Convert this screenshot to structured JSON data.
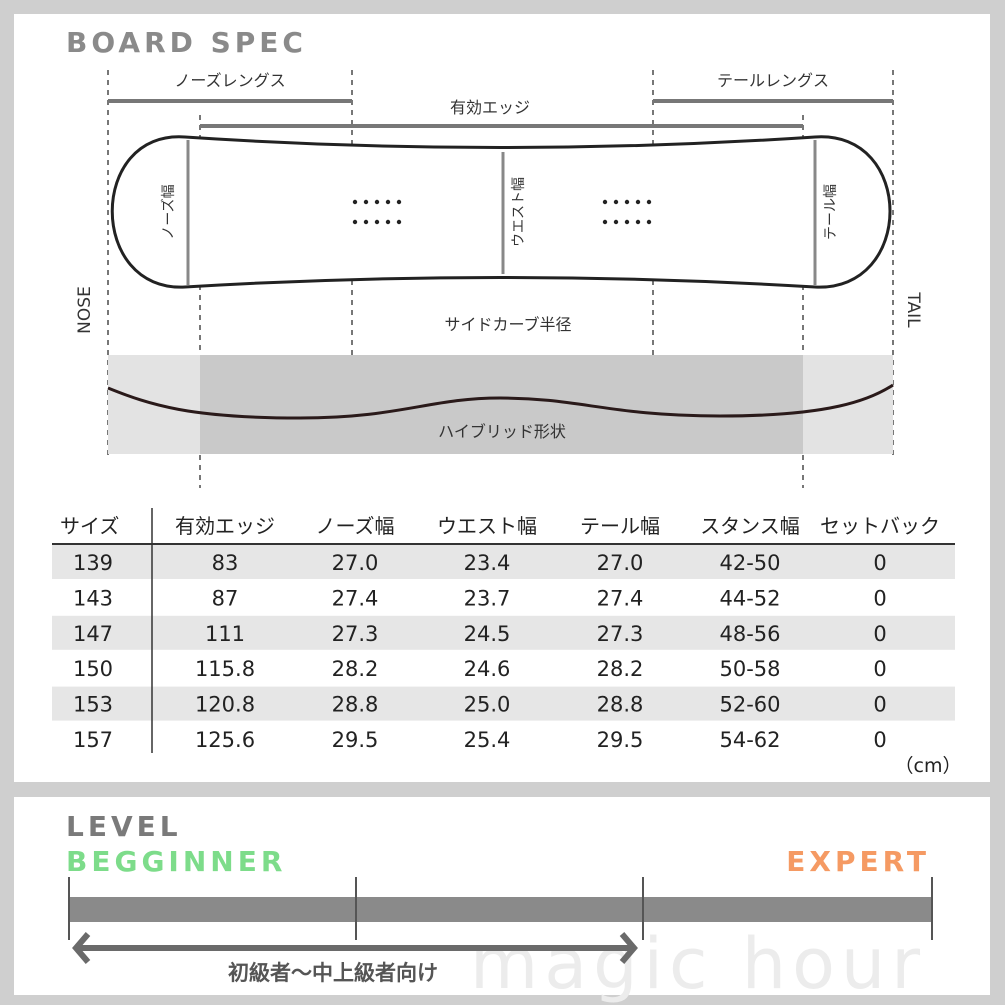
{
  "spec": {
    "title": "BOARD SPEC",
    "labels": {
      "nose_length": "ノーズレングス",
      "effective_edge": "有効エッジ",
      "tail_length": "テールレングス",
      "nose_width": "ノーズ幅",
      "waist_width": "ウエスト幅",
      "tail_width": "テール幅",
      "nose": "NOSE",
      "tail": "TAIL",
      "sidecut_radius": "サイドカーブ半径",
      "hybrid_shape": "ハイブリッド形状"
    },
    "table": {
      "headers": [
        "サイズ",
        "有効エッジ",
        "ノーズ幅",
        "ウエスト幅",
        "テール幅",
        "スタンス幅",
        "セットバック"
      ],
      "rows": [
        [
          "139",
          "83",
          "27.0",
          "23.4",
          "27.0",
          "42-50",
          "0"
        ],
        [
          "143",
          "87",
          "27.4",
          "23.7",
          "27.4",
          "44-52",
          "0"
        ],
        [
          "147",
          "111",
          "27.3",
          "24.5",
          "27.3",
          "48-56",
          "0"
        ],
        [
          "150",
          "115.8",
          "28.2",
          "24.6",
          "28.2",
          "50-58",
          "0"
        ],
        [
          "153",
          "120.8",
          "28.8",
          "25.0",
          "28.8",
          "52-60",
          "0"
        ],
        [
          "157",
          "125.6",
          "29.5",
          "25.4",
          "29.5",
          "54-62",
          "0"
        ]
      ],
      "unit": "（cm）"
    }
  },
  "level": {
    "title": "LEVEL",
    "beginner": "BEGGINNER",
    "expert": "EXPERT",
    "range_text": "初級者〜中上級者向け",
    "range_fraction": [
      0,
      0.66
    ],
    "colors": {
      "beginner": "#7ddc8a",
      "expert": "#f59a63",
      "bar": "#8a8a8a"
    }
  },
  "watermark": "magic hour"
}
